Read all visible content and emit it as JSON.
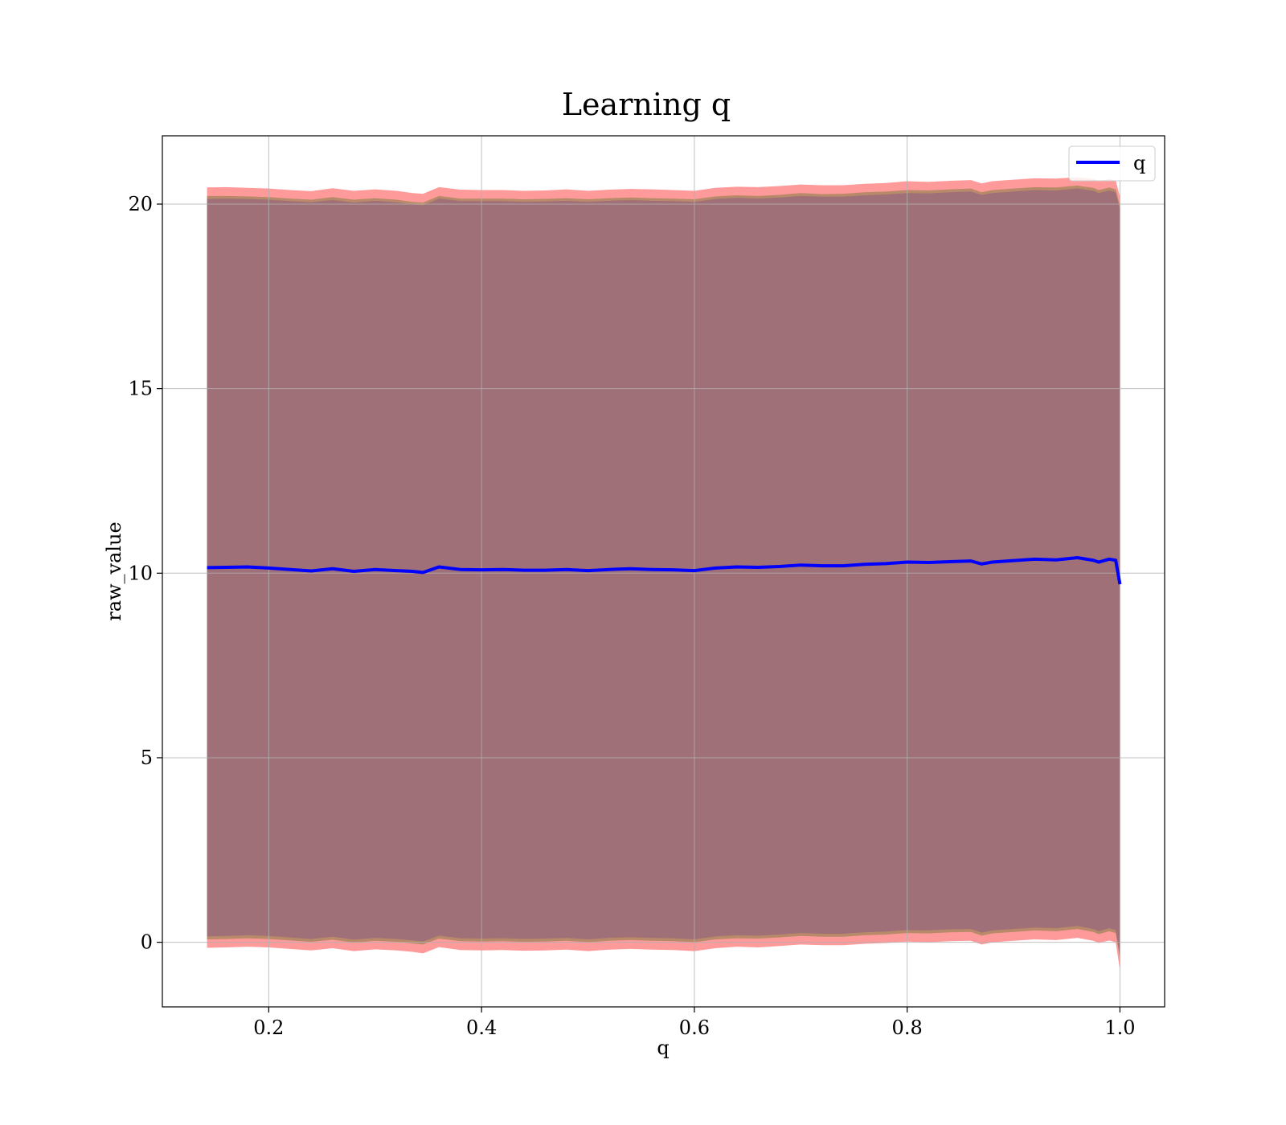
{
  "chart_data": {
    "type": "area",
    "title": "Learning q",
    "xlabel": "q",
    "ylabel": "raw_value",
    "xlim": [
      0.1,
      1.042
    ],
    "ylim": [
      -1.75,
      21.85
    ],
    "x_ticks": [
      0.2,
      0.4,
      0.6,
      0.8,
      1.0
    ],
    "x_tick_labels": [
      "0.2",
      "0.4",
      "0.6",
      "0.8",
      "1.0"
    ],
    "y_ticks": [
      0,
      5,
      10,
      15,
      20
    ],
    "y_tick_labels": [
      "0",
      "5",
      "10",
      "15",
      "20"
    ],
    "grid": true,
    "legend": {
      "position": "top-right",
      "entries": [
        {
          "label": "q",
          "color": "#0000ff"
        }
      ]
    },
    "colors": {
      "line": "#0000ff",
      "band_outer": "#ff9a9a",
      "band_middle": "#b98a6a",
      "band_inner": "#a07078"
    },
    "x": [
      0.142,
      0.16,
      0.18,
      0.2,
      0.22,
      0.24,
      0.26,
      0.28,
      0.3,
      0.32,
      0.335,
      0.345,
      0.36,
      0.38,
      0.4,
      0.42,
      0.44,
      0.46,
      0.48,
      0.5,
      0.52,
      0.54,
      0.56,
      0.58,
      0.6,
      0.62,
      0.64,
      0.66,
      0.68,
      0.7,
      0.72,
      0.74,
      0.76,
      0.78,
      0.8,
      0.82,
      0.84,
      0.86,
      0.87,
      0.88,
      0.9,
      0.92,
      0.94,
      0.96,
      0.975,
      0.98,
      0.99,
      0.996,
      1.0
    ],
    "series": [
      {
        "name": "q",
        "values": [
          10.15,
          10.16,
          10.17,
          10.14,
          10.1,
          10.06,
          10.12,
          10.05,
          10.1,
          10.07,
          10.05,
          10.02,
          10.17,
          10.1,
          10.09,
          10.1,
          10.08,
          10.08,
          10.1,
          10.07,
          10.1,
          10.12,
          10.1,
          10.09,
          10.07,
          10.14,
          10.17,
          10.16,
          10.18,
          10.22,
          10.2,
          10.2,
          10.24,
          10.26,
          10.3,
          10.29,
          10.31,
          10.33,
          10.25,
          10.3,
          10.34,
          10.38,
          10.36,
          10.42,
          10.35,
          10.3,
          10.38,
          10.35,
          9.7
        ],
        "bands": [
          {
            "label": "outer",
            "upper": [
              20.45,
              20.46,
              20.44,
              20.42,
              20.38,
              20.35,
              20.43,
              20.36,
              20.4,
              20.36,
              20.3,
              20.28,
              20.46,
              20.39,
              20.38,
              20.38,
              20.36,
              20.37,
              20.4,
              20.36,
              20.39,
              20.41,
              20.4,
              20.38,
              20.36,
              20.44,
              20.47,
              20.46,
              20.49,
              20.53,
              20.51,
              20.51,
              20.55,
              20.57,
              20.62,
              20.6,
              20.63,
              20.65,
              20.56,
              20.62,
              20.66,
              20.7,
              20.69,
              20.73,
              20.68,
              20.62,
              20.68,
              20.64,
              20.2
            ],
            "lower": [
              -0.15,
              -0.14,
              -0.12,
              -0.14,
              -0.18,
              -0.22,
              -0.16,
              -0.24,
              -0.19,
              -0.22,
              -0.26,
              -0.3,
              -0.13,
              -0.21,
              -0.22,
              -0.21,
              -0.23,
              -0.22,
              -0.2,
              -0.24,
              -0.2,
              -0.18,
              -0.2,
              -0.21,
              -0.24,
              -0.16,
              -0.12,
              -0.14,
              -0.1,
              -0.06,
              -0.08,
              -0.08,
              -0.04,
              -0.02,
              0.02,
              0.0,
              0.03,
              0.04,
              -0.06,
              0.0,
              0.04,
              0.08,
              0.06,
              0.12,
              0.04,
              -0.02,
              0.05,
              0.0,
              -0.75
            ]
          },
          {
            "label": "middle",
            "upper": [
              20.22,
              20.22,
              20.21,
              20.19,
              20.15,
              20.12,
              20.19,
              20.12,
              20.16,
              20.12,
              20.06,
              20.04,
              20.22,
              20.15,
              20.15,
              20.15,
              20.13,
              20.14,
              20.16,
              20.13,
              20.16,
              20.18,
              20.16,
              20.15,
              20.13,
              20.21,
              20.24,
              20.22,
              20.25,
              20.3,
              20.27,
              20.28,
              20.32,
              20.34,
              20.38,
              20.37,
              20.4,
              20.42,
              20.32,
              20.38,
              20.42,
              20.46,
              20.45,
              20.5,
              20.44,
              20.38,
              20.45,
              20.4,
              19.95
            ],
            "lower": [
              0.08,
              0.09,
              0.11,
              0.09,
              0.05,
              0.01,
              0.07,
              -0.01,
              0.04,
              0.01,
              -0.03,
              -0.06,
              0.1,
              0.03,
              0.02,
              0.03,
              0.01,
              0.02,
              0.04,
              0.0,
              0.04,
              0.06,
              0.04,
              0.03,
              0.0,
              0.08,
              0.11,
              0.1,
              0.13,
              0.17,
              0.15,
              0.15,
              0.19,
              0.21,
              0.25,
              0.24,
              0.27,
              0.28,
              0.18,
              0.24,
              0.28,
              0.32,
              0.3,
              0.36,
              0.28,
              0.22,
              0.3,
              0.25,
              -0.45
            ]
          },
          {
            "label": "inner",
            "upper": [
              20.14,
              20.15,
              20.14,
              20.12,
              20.08,
              20.05,
              20.11,
              20.04,
              20.09,
              20.05,
              19.99,
              19.97,
              20.15,
              20.08,
              20.08,
              20.08,
              20.06,
              20.07,
              20.09,
              20.06,
              20.09,
              20.11,
              20.09,
              20.08,
              20.06,
              20.14,
              20.17,
              20.15,
              20.18,
              20.22,
              20.2,
              20.2,
              20.24,
              20.26,
              20.3,
              20.29,
              20.32,
              20.34,
              20.25,
              20.3,
              20.34,
              20.38,
              20.37,
              20.42,
              20.36,
              20.3,
              20.37,
              20.32,
              19.85
            ],
            "lower": [
              0.16,
              0.17,
              0.19,
              0.17,
              0.13,
              0.09,
              0.15,
              0.07,
              0.12,
              0.09,
              0.05,
              0.02,
              0.18,
              0.11,
              0.1,
              0.11,
              0.09,
              0.1,
              0.12,
              0.08,
              0.12,
              0.14,
              0.12,
              0.11,
              0.08,
              0.16,
              0.19,
              0.18,
              0.21,
              0.25,
              0.23,
              0.23,
              0.27,
              0.29,
              0.33,
              0.32,
              0.35,
              0.36,
              0.26,
              0.32,
              0.36,
              0.4,
              0.38,
              0.44,
              0.36,
              0.3,
              0.38,
              0.33,
              -0.35
            ]
          }
        ]
      }
    ]
  }
}
